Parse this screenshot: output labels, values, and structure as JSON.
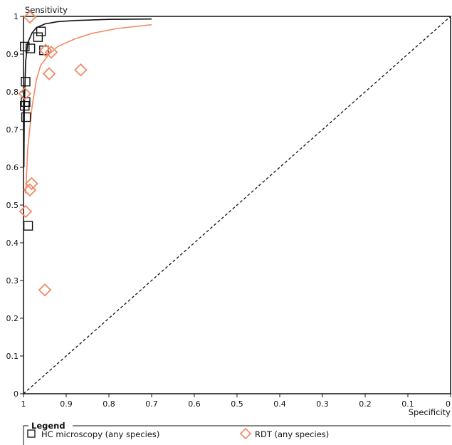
{
  "chart_data": {
    "type": "scatter",
    "xlabel": "Specificity",
    "ylabel": "Sensitivity",
    "xlim": [
      1,
      0
    ],
    "ylim": [
      0,
      1
    ],
    "x_ticks": [
      "1",
      "0.9",
      "0.8",
      "0.7",
      "0.6",
      "0.5",
      "0.4",
      "0.3",
      "0.2",
      "0.1",
      "0"
    ],
    "y_ticks": [
      "0",
      "0.1",
      "0.2",
      "0.3",
      "0.4",
      "0.5",
      "0.6",
      "0.7",
      "0.8",
      "0.9",
      "1"
    ],
    "grid": false,
    "legend_position": "bottom",
    "legend": {
      "title": "Legend",
      "entries": [
        "HC microscopy (any species)",
        "RDT (any species)"
      ]
    },
    "series": [
      {
        "name": "HC microscopy (any species)",
        "marker": "square",
        "color": "#111111",
        "points": [
          {
            "x": 0.997,
            "y": 0.92
          },
          {
            "x": 0.995,
            "y": 0.827
          },
          {
            "x": 0.995,
            "y": 0.773
          },
          {
            "x": 0.997,
            "y": 0.763
          },
          {
            "x": 0.994,
            "y": 0.733
          },
          {
            "x": 0.989,
            "y": 0.445
          },
          {
            "x": 0.984,
            "y": 0.915
          },
          {
            "x": 0.966,
            "y": 0.945
          },
          {
            "x": 0.959,
            "y": 0.96
          },
          {
            "x": 0.952,
            "y": 0.91
          }
        ],
        "curve": [
          [
            0.999,
            0.6
          ],
          [
            0.998,
            0.76
          ],
          [
            0.995,
            0.88
          ],
          [
            0.99,
            0.93
          ],
          [
            0.98,
            0.956
          ],
          [
            0.97,
            0.97
          ],
          [
            0.95,
            0.98
          ],
          [
            0.92,
            0.986
          ],
          [
            0.88,
            0.989
          ],
          [
            0.8,
            0.992
          ],
          [
            0.7,
            0.993
          ]
        ]
      },
      {
        "name": "RDT (any species)",
        "marker": "diamond",
        "color": "#f08a65",
        "points": [
          {
            "x": 0.985,
            "y": 0.998
          },
          {
            "x": 0.948,
            "y": 0.91
          },
          {
            "x": 0.935,
            "y": 0.905
          },
          {
            "x": 0.94,
            "y": 0.848
          },
          {
            "x": 0.866,
            "y": 0.858
          },
          {
            "x": 0.997,
            "y": 0.795
          },
          {
            "x": 0.981,
            "y": 0.557
          },
          {
            "x": 0.985,
            "y": 0.54
          },
          {
            "x": 0.995,
            "y": 0.483
          },
          {
            "x": 0.95,
            "y": 0.275
          }
        ],
        "curve": [
          [
            0.995,
            0.53
          ],
          [
            0.99,
            0.65
          ],
          [
            0.98,
            0.76
          ],
          [
            0.97,
            0.83
          ],
          [
            0.96,
            0.87
          ],
          [
            0.94,
            0.9
          ],
          [
            0.92,
            0.92
          ],
          [
            0.88,
            0.94
          ],
          [
            0.84,
            0.955
          ],
          [
            0.78,
            0.968
          ],
          [
            0.7,
            0.978
          ]
        ]
      }
    ],
    "reference_line": {
      "from": [
        1,
        0
      ],
      "to": [
        0,
        1
      ],
      "style": "dashed"
    }
  }
}
